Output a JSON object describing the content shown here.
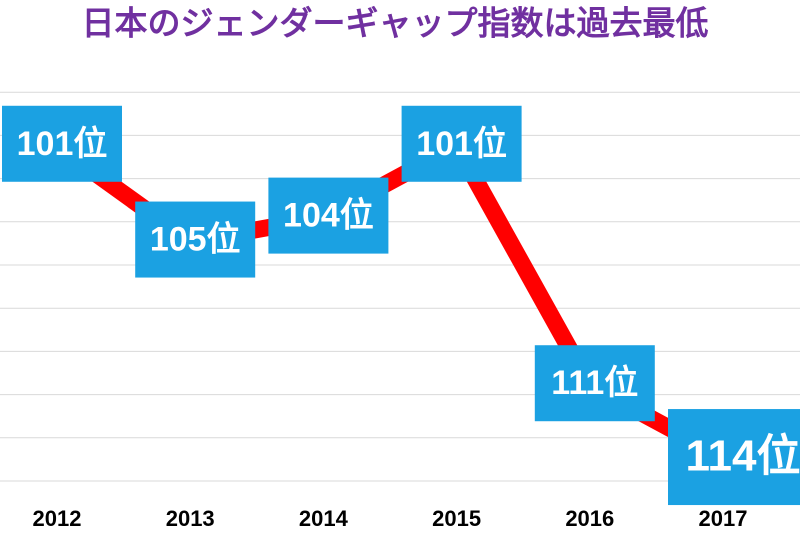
{
  "chart_data": {
    "type": "line",
    "title": "日本のジェンダーギャップ指数は過去最低",
    "categories": [
      "2012",
      "2013",
      "2014",
      "2015",
      "2016",
      "2017"
    ],
    "values": [
      101,
      105,
      104,
      101,
      111,
      114
    ],
    "value_labels": [
      "101位",
      "105位",
      "104位",
      "101位",
      "111位",
      "114位"
    ],
    "color": "#ff0000",
    "label_color": "#1ba1e2",
    "title_color": "#7030a0",
    "ylim": [
      97,
      115
    ],
    "y_inverted": true,
    "grid": true
  }
}
